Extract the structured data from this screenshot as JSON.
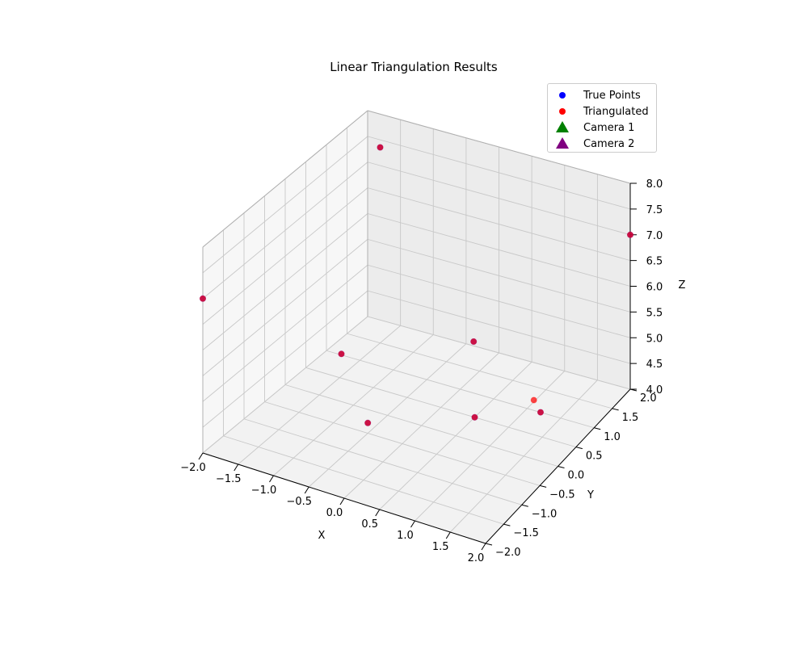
{
  "chart_data": {
    "type": "scatter",
    "title": "Linear Triangulation Results",
    "xlabel": "X",
    "ylabel": "Y",
    "zlabel": "Z",
    "xlim": [
      -2.0,
      2.0
    ],
    "ylim": [
      -2.0,
      2.0
    ],
    "zlim": [
      4.0,
      8.0
    ],
    "xticks": [
      "−2.0",
      "−1.5",
      "−1.0",
      "−0.5",
      "0.0",
      "0.5",
      "1.0",
      "1.5",
      "2.0"
    ],
    "yticks": [
      "−2.0",
      "−1.5",
      "−1.0",
      "−0.5",
      "0.0",
      "0.5",
      "1.0",
      "1.5",
      "2.0"
    ],
    "zticks": [
      "4.0",
      "4.5",
      "5.0",
      "5.5",
      "6.0",
      "6.5",
      "7.0",
      "7.5",
      "8.0"
    ],
    "grid": true,
    "legend_position": "top-right",
    "series": [
      {
        "name": "True Points",
        "marker": "circle",
        "color": "#0000ff",
        "points": [
          {
            "x": -1.5,
            "y": 1.5,
            "z": 7.8
          },
          {
            "x": 2.0,
            "y": 2.0,
            "z": 7.0
          },
          {
            "x": -2.0,
            "y": -2.0,
            "z": 7.0
          },
          {
            "x": 0.2,
            "y": 1.0,
            "z": 5.0
          },
          {
            "x": -1.0,
            "y": -0.3,
            "z": 5.2
          },
          {
            "x": 0.5,
            "y": 0.5,
            "z": 4.0
          },
          {
            "x": 1.2,
            "y": 1.0,
            "z": 4.0
          },
          {
            "x": -0.5,
            "y": -0.5,
            "z": 4.2
          }
        ]
      },
      {
        "name": "Triangulated",
        "marker": "circle",
        "color": "#ff0000",
        "points": [
          {
            "x": -1.5,
            "y": 1.5,
            "z": 7.8
          },
          {
            "x": 2.0,
            "y": 2.0,
            "z": 7.0
          },
          {
            "x": -2.0,
            "y": -2.0,
            "z": 7.0
          },
          {
            "x": 0.2,
            "y": 1.0,
            "z": 5.0
          },
          {
            "x": -1.0,
            "y": -0.3,
            "z": 5.2
          },
          {
            "x": 0.5,
            "y": 0.5,
            "z": 4.0
          },
          {
            "x": 1.2,
            "y": 1.0,
            "z": 4.0
          },
          {
            "x": -0.5,
            "y": -0.5,
            "z": 4.2
          },
          {
            "x": 1.1,
            "y": 1.0,
            "z": 4.2
          }
        ]
      },
      {
        "name": "Camera 1",
        "marker": "triangle",
        "color": "#008000",
        "points": []
      },
      {
        "name": "Camera 2",
        "marker": "triangle",
        "color": "#800080",
        "points": []
      }
    ]
  }
}
